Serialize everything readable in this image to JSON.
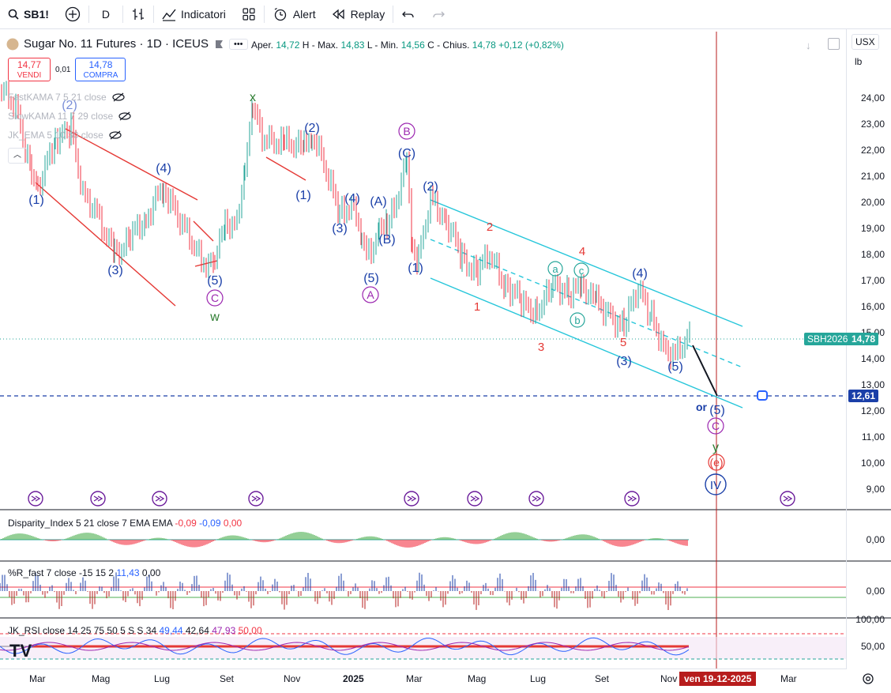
{
  "toolbar": {
    "symbol": "SB1!",
    "interval": "D",
    "indicators_label": "Indicatori",
    "alert_label": "Alert",
    "replay_label": "Replay"
  },
  "legend": {
    "title": "Sugar No. 11 Futures · 1D · ICEUS",
    "open_label": "Aper.",
    "open": "14,72",
    "high_label": "H - Max.",
    "high": "14,83",
    "low_label": "L - Min.",
    "low": "14,56",
    "close_label": "C - Chius.",
    "close": "14,78",
    "change": "+0,12 (+0,82%)"
  },
  "trade": {
    "sell_price": "14,77",
    "sell_label": "VENDI",
    "spread": "0,01",
    "buy_price": "14,78",
    "buy_label": "COMPRA"
  },
  "overlays": {
    "fast": "FastKAMA 7 5 21 close",
    "slow": "SlowKAMA 11 7 29 close",
    "jk": "JK_EMA 5 10 30 close"
  },
  "axis": {
    "currency": "USX",
    "unit": "lb",
    "price_ticks": [
      "24,00",
      "23,00",
      "22,00",
      "21,00",
      "20,00",
      "19,00",
      "18,00",
      "17,00",
      "16,00",
      "15,00",
      "14,00",
      "13,00",
      "12,00",
      "11,00",
      "10,00",
      "9,00"
    ],
    "last_price_tag": "14,78",
    "contract_tag": "SBH2026",
    "line_price_tag": "12,61",
    "disparity_zero": "0,00",
    "r_zero": "0,00",
    "r_hundred": "100,00",
    "rsi_fifty": "50,00"
  },
  "time_axis": {
    "labels": [
      "Mar",
      "Mag",
      "Lug",
      "Set",
      "Nov",
      "2025",
      "Mar",
      "Mag",
      "Lug",
      "Set",
      "Nov",
      "Mar"
    ],
    "cursor_date": "ven 19-12-2025"
  },
  "indicators": {
    "disparity": {
      "name": "Disparity_Index 5 21 close 7 EMA EMA",
      "v1": "-0,09",
      "v2": "-0,09",
      "v3": "0,00"
    },
    "r_fast": {
      "name": "%R_fast 7 close -15 15 2",
      "v1": "11,43",
      "v2": "0,00"
    },
    "rsi": {
      "name": "JK_RSI close 14 25 75 50 5 S S 34",
      "v1": "49,44",
      "v2": "42,64",
      "v3": "47,93",
      "v4": "50,00"
    }
  },
  "waves": {
    "w1": "(1)",
    "w2": "(2)",
    "w3": "(3)",
    "w4": "(4)",
    "w5": "(5)",
    "wA": "(A)",
    "wB": "(B)",
    "wC": "(C)",
    "x": "x",
    "w": "w",
    "y": "y",
    "or": "or",
    "cA": "A",
    "cB": "B",
    "cC": "C",
    "e": "(e)",
    "IV": "IV",
    "n1": "1",
    "n2": "2",
    "n3": "3",
    "n4": "4",
    "n5": "5",
    "a": "a",
    "b": "b",
    "c": "c"
  },
  "colors": {
    "up": "#2962ff",
    "down": "#f23645",
    "teal": "#00bcd4",
    "purple": "#9c27b0",
    "green": "#2e7d32",
    "wave_blue": "#1a3fa8",
    "red_label": "#e53935"
  }
}
